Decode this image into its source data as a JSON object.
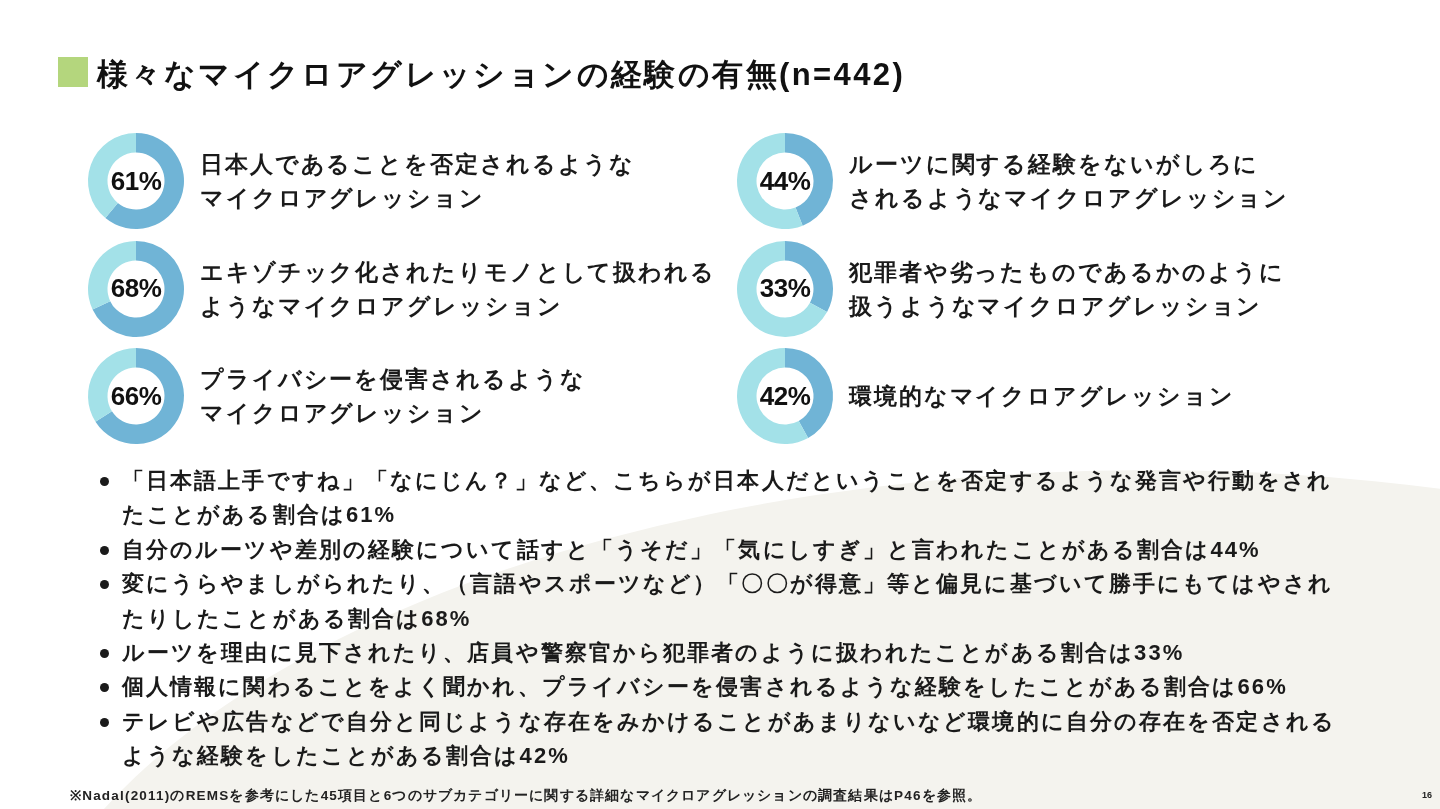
{
  "chart_data": [
    {
      "type": "other",
      "title": "様々なマイクロアグレッションの経験の有無(n=442)"
    },
    {
      "type": "donut",
      "title": "日本人であることを否定されるようなマイクロアグレッション",
      "categories": [
        null,
        null
      ],
      "values": [
        61,
        39
      ],
      "colors": [
        "#70b4d6",
        "#a3e1e8"
      ],
      "value_labels": [
        "61%",
        null
      ]
    },
    {
      "type": "donut",
      "title": "ルーツに関する経験をないがしろにされるようなマイクロアグレッション",
      "categories": [
        null,
        null
      ],
      "values": [
        44,
        56
      ],
      "colors": [
        "#70b4d6",
        "#a3e1e8"
      ],
      "value_labels": [
        "44%",
        null
      ]
    },
    {
      "type": "donut",
      "title": "エキゾチック化されたりモノとして扱われるようなマイクロアグレッション",
      "categories": [
        null,
        null
      ],
      "values": [
        68,
        32
      ],
      "colors": [
        "#70b4d6",
        "#a3e1e8"
      ],
      "value_labels": [
        "68%",
        null
      ]
    },
    {
      "type": "donut",
      "title": "犯罪者や劣ったものであるかのように扱うようなマイクロアグレッション",
      "categories": [
        null,
        null
      ],
      "values": [
        33,
        67
      ],
      "colors": [
        "#70b4d6",
        "#a3e1e8"
      ],
      "value_labels": [
        "33%",
        null
      ]
    },
    {
      "type": "donut",
      "title": "プライバシーを侵害されるようなマイクロアグレッション",
      "categories": [
        null,
        null
      ],
      "values": [
        66,
        34
      ],
      "colors": [
        "#70b4d6",
        "#a3e1e8"
      ],
      "value_labels": [
        "66%",
        null
      ]
    },
    {
      "type": "donut",
      "title": "環境的なマイクロアグレッション",
      "categories": [
        null,
        null
      ],
      "values": [
        42,
        58
      ],
      "colors": [
        "#70b4d6",
        "#a3e1e8"
      ],
      "value_labels": [
        "42%",
        null
      ]
    },
    {
      "type": "other",
      "annotations": [
        "「日本語上手ですね」「なにじん？」など、こちらが日本人だということを否定するような発言や行動をされたことがある割合は61%",
        "自分のルーツや差別の経験について話すと「うそだ」「気にしすぎ」と言われたことがある割合は44%",
        "変にうらやましがられたり、（言語やスポーツなど）「〇〇が得意」等と偏見に基づいて勝手にもてはやされたりしたことがある割合は68%",
        "ルーツを理由に見下されたり、店員や警察官から犯罪者のように扱われたことがある割合は33%",
        "個人情報に関わることをよく聞かれ、プライバシーを侵害されるような経験をしたことがある割合は66%",
        "テレビや広告などで自分と同じような存在をみかけることがあまりないなど環境的に自分の存在を否定されるような経験をしたことがある割合は42%"
      ]
    },
    {
      "type": "other",
      "annotations": [
        "※Nadal(2011)のREMSを参考にした45項目と6つのサブカテゴリーに関する詳細なマイクロアグレッションの調査結果はP46を参照。",
        "16"
      ]
    }
  ]
}
